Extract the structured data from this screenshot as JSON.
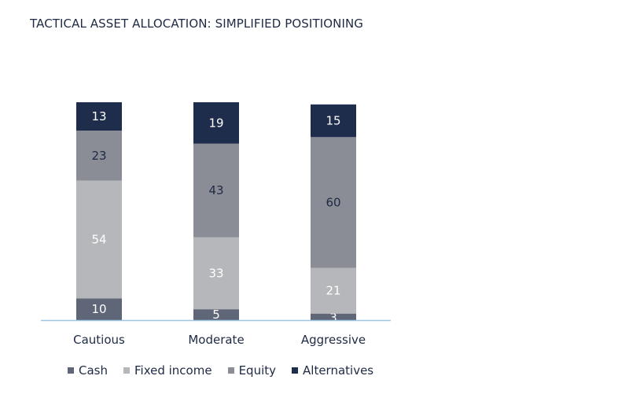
{
  "header": {
    "title": "TACTICAL ASSET ALLOCATION: SIMPLIFIED POSITIONING"
  },
  "chart_data": {
    "type": "bar",
    "stacked": true,
    "categories": [
      "Cautious",
      "Moderate",
      "Aggressive"
    ],
    "series": [
      {
        "name": "Cash",
        "values": [
          10,
          5,
          3
        ],
        "color": "#5f6677",
        "label_color": "#ffffff"
      },
      {
        "name": "Fixed income",
        "values": [
          54,
          33,
          21
        ],
        "color": "#b6b7ba",
        "label_color": "#ffffff"
      },
      {
        "name": "Equity",
        "values": [
          23,
          43,
          60
        ],
        "color": "#8a8d96",
        "label_color": "#1e2a44"
      },
      {
        "name": "Alternatives",
        "values": [
          13,
          19,
          15
        ],
        "color": "#1f2d4d",
        "label_color": "#ffffff"
      }
    ],
    "ylim": [
      0,
      100
    ],
    "grid": false,
    "legend_position": "bottom",
    "baseline_color": "#9ec6dd"
  }
}
